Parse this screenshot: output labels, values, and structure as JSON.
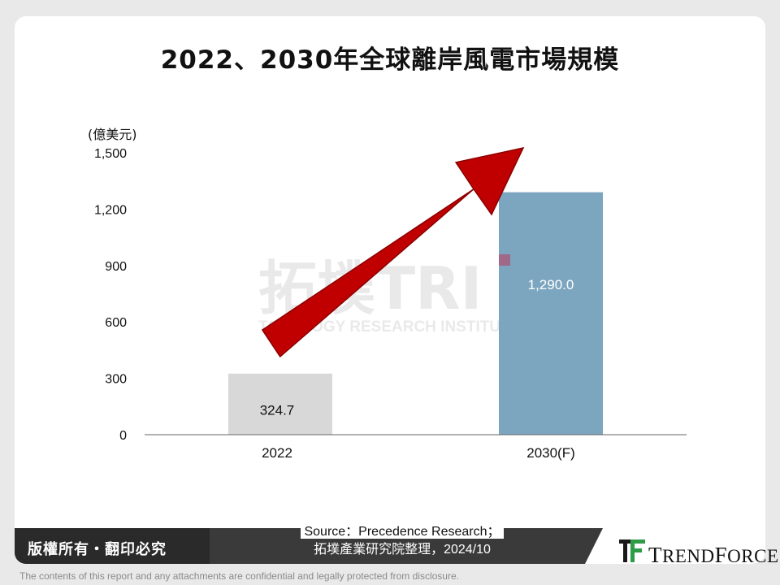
{
  "title": "2022、2030年全球離岸風電市場規模",
  "chart_data": {
    "type": "bar",
    "title": "2022、2030年全球離岸風電市場規模",
    "ylabel": "(億美元)",
    "categories": [
      "2022",
      "2030(F)"
    ],
    "values": [
      324.7,
      1290.0
    ],
    "data_labels": [
      "324.7",
      "1,290.0"
    ],
    "yticks": [
      0,
      300,
      600,
      900,
      1200,
      1500
    ],
    "ytick_labels": [
      "0",
      "300",
      "600",
      "900",
      "1,200",
      "1,500"
    ],
    "ylim": [
      0,
      1500
    ],
    "bar_colors": [
      "#d8d8d8",
      "#7ca6bf"
    ],
    "arrow_color": "#c00000",
    "grid": false,
    "legend": "none"
  },
  "watermark": {
    "main": "拓墣TRI",
    "sub": "TOPOLOGY RESEARCH INSTITUTE"
  },
  "source_line1": "Source：Precedence Research；",
  "source_line2": "拓墣產業研究院整理，2024/10",
  "copyright": "版權所有・翻印必究",
  "logo": {
    "initial": "T",
    "rest": "REND",
    "initial2": "F",
    "rest2": "ORCE",
    "colors": [
      "#1a1a1a",
      "#2e9b45"
    ]
  },
  "disclaimer": "The contents of this report and any attachments are confidential and legally protected from disclosure."
}
